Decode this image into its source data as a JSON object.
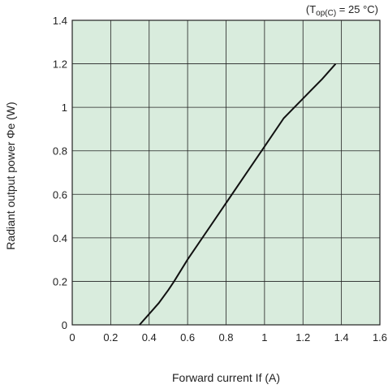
{
  "chart_data": {
    "type": "line",
    "title": "",
    "condition": {
      "prefix": "(T",
      "subscript": "op(C)",
      "suffix": " = 25 °C)"
    },
    "xlabel": "Forward current If (A)",
    "ylabel": "Radiant output power Φe (W)",
    "xlim": [
      0,
      1.6
    ],
    "ylim": [
      0,
      1.4
    ],
    "x_ticks": [
      "0",
      "0.2",
      "0.4",
      "0.6",
      "0.8",
      "1",
      "1.2",
      "1.4",
      "1.6"
    ],
    "y_ticks": [
      "0",
      "0.2",
      "0.4",
      "0.6",
      "0.8",
      "1",
      "1.2",
      "1.4"
    ],
    "grid": true,
    "plot_background": "#d9ecdd",
    "line_color": "#111111",
    "series": [
      {
        "x": [
          0.35,
          0.4,
          0.45,
          0.5,
          0.53,
          0.6,
          0.7,
          0.8,
          0.9,
          1.0,
          1.1,
          1.2,
          1.3,
          1.37
        ],
        "y": [
          0.0,
          0.05,
          0.1,
          0.16,
          0.2,
          0.3,
          0.43,
          0.56,
          0.69,
          0.82,
          0.95,
          1.04,
          1.13,
          1.2
        ]
      }
    ]
  }
}
